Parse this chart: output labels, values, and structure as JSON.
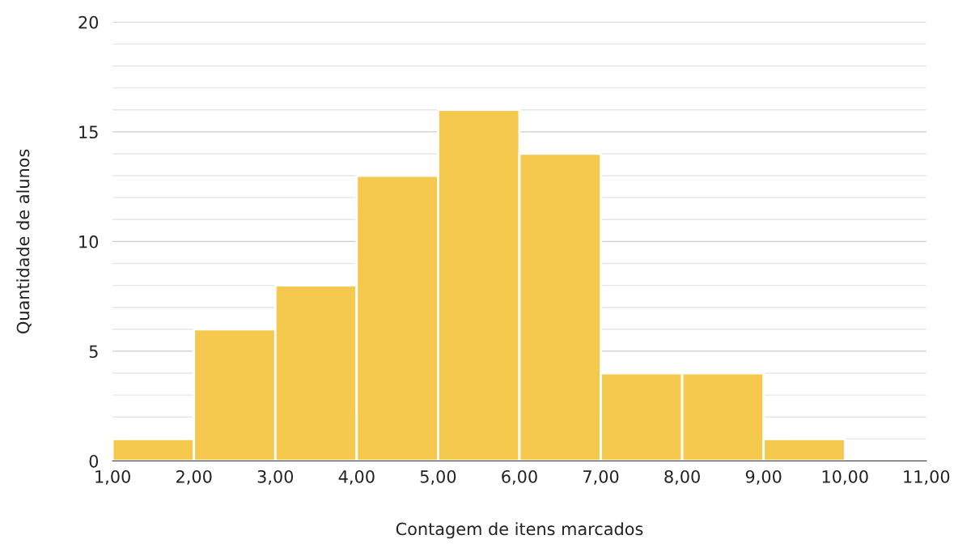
{
  "chart_data": {
    "type": "histogram",
    "xlabel": "Contagem de itens marcados",
    "ylabel": "Quantidade de alunos",
    "bins": [
      1,
      2,
      3,
      4,
      5,
      6,
      7,
      8,
      9,
      10,
      11
    ],
    "values": [
      1,
      6,
      8,
      13,
      16,
      14,
      4,
      4,
      1,
      0
    ],
    "color": "#f5c94e",
    "xlim": [
      1,
      11
    ],
    "xticks": [
      {
        "value": 1,
        "label": "1,00"
      },
      {
        "value": 2,
        "label": "2,00"
      },
      {
        "value": 3,
        "label": "3,00"
      },
      {
        "value": 4,
        "label": "4,00"
      },
      {
        "value": 5,
        "label": "5,00"
      },
      {
        "value": 6,
        "label": "6,00"
      },
      {
        "value": 7,
        "label": "7,00"
      },
      {
        "value": 8,
        "label": "8,00"
      },
      {
        "value": 9,
        "label": "9,00"
      },
      {
        "value": 10,
        "label": "10,00"
      },
      {
        "value": 11,
        "label": "11,00"
      }
    ],
    "ylim": [
      0,
      20
    ],
    "yticks": [
      0,
      {
        "value": 1,
        "label": null
      },
      {
        "value": 2,
        "label": null
      },
      {
        "value": 3,
        "label": null
      },
      {
        "value": 4,
        "label": null
      },
      5,
      {
        "value": 6,
        "label": null
      },
      {
        "value": 7,
        "label": null
      },
      {
        "value": 8,
        "label": null
      },
      {
        "value": 9,
        "label": null
      },
      10,
      {
        "value": 11,
        "label": null
      },
      {
        "value": 12,
        "label": null
      },
      {
        "value": 13,
        "label": null
      },
      {
        "value": 14,
        "label": null
      },
      15,
      {
        "value": 16,
        "label": null
      },
      {
        "value": 17,
        "label": null
      },
      {
        "value": 18,
        "label": null
      },
      {
        "value": 19,
        "label": null
      },
      20
    ],
    "grid": "y"
  }
}
